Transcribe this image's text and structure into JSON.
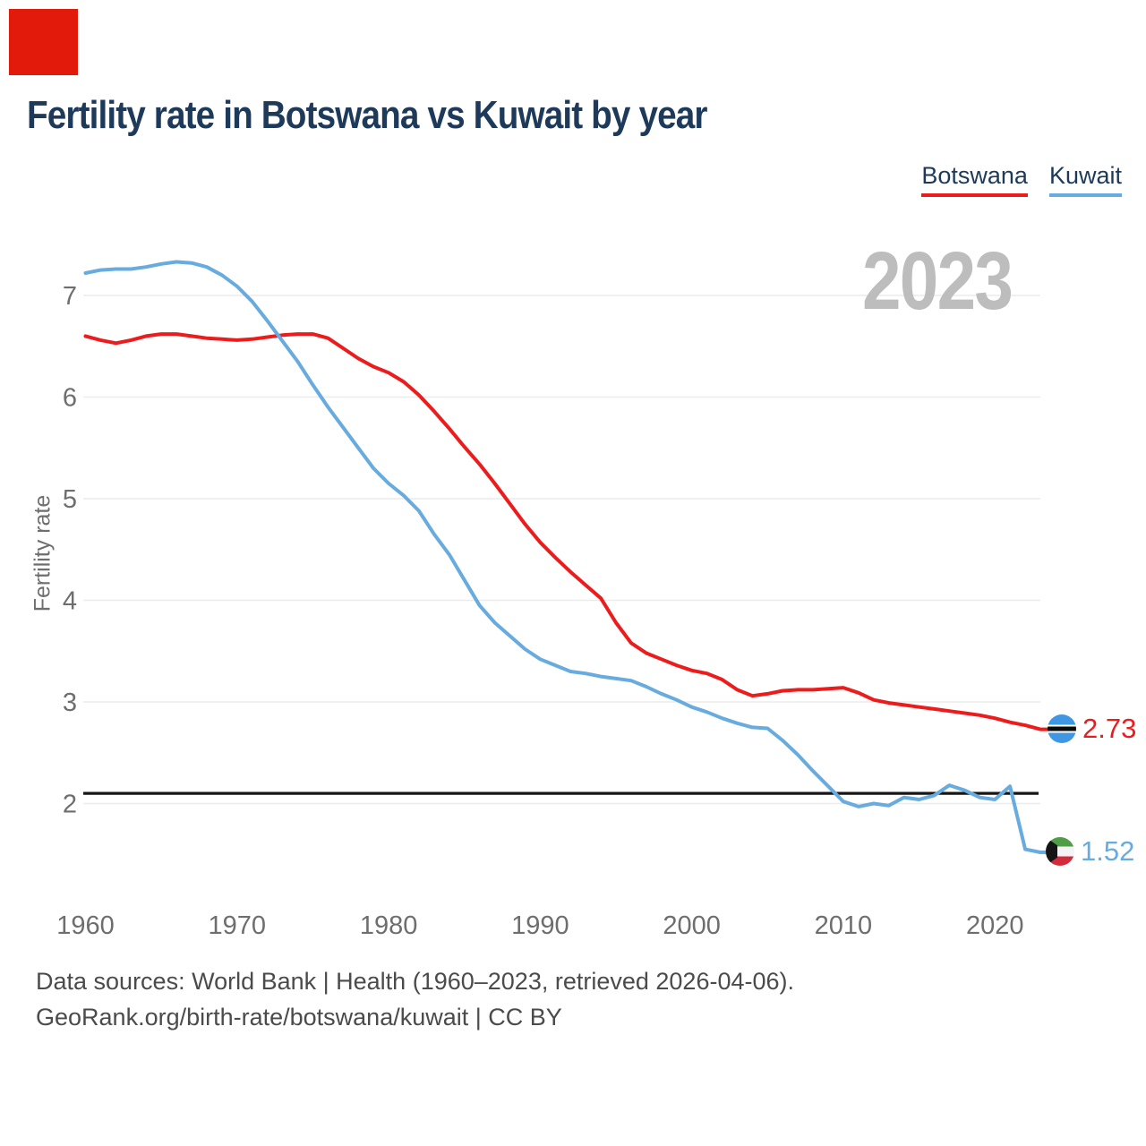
{
  "marker": {
    "color": "#e11a0c"
  },
  "title": "Fertility rate in Botswana vs Kuwait by year",
  "legend": {
    "items": [
      {
        "label": "Botswana",
        "color": "#ed1c1c"
      },
      {
        "label": "Kuwait",
        "color": "#68abde"
      }
    ]
  },
  "watermark": "2023",
  "end_labels": {
    "botswana": {
      "value": "2.73",
      "flag": "botswana-flag",
      "color": "#ed1c1c"
    },
    "kuwait": {
      "value": "1.52",
      "flag": "kuwait-flag",
      "color": "#68abde"
    }
  },
  "footer": {
    "line1": "Data sources: World Bank | Health (1960–2023, retrieved 2026-04-06).",
    "line2": "GeoRank.org/birth-rate/botswana/kuwait | CC BY"
  },
  "flag_colors": {
    "botswana": [
      "#3f97e3",
      "#ffffff",
      "#0b0b0b"
    ],
    "kuwait": [
      "#4f9e45",
      "#f4f4f4",
      "#d32b3c",
      "#151515"
    ]
  },
  "chart_data": {
    "type": "line",
    "title": "Fertility rate in Botswana vs Kuwait by year",
    "xlabel": "",
    "ylabel": "Fertility rate",
    "xlim": [
      1960,
      2023
    ],
    "ylim": [
      1.4,
      7.5
    ],
    "grid": "horizontal",
    "legend_position": "top-right",
    "watermark": "2023",
    "replacement_level_line": 2.1,
    "x_ticks": [
      "1960",
      "1970",
      "1980",
      "1990",
      "2000",
      "2010",
      "2020"
    ],
    "y_ticks": [
      "7",
      "6",
      "5",
      "4",
      "3",
      "2"
    ],
    "years": [
      1960,
      1961,
      1962,
      1963,
      1964,
      1965,
      1966,
      1967,
      1968,
      1969,
      1970,
      1971,
      1972,
      1973,
      1974,
      1975,
      1976,
      1977,
      1978,
      1979,
      1980,
      1981,
      1982,
      1983,
      1984,
      1985,
      1986,
      1987,
      1988,
      1989,
      1990,
      1991,
      1992,
      1993,
      1994,
      1995,
      1996,
      1997,
      1998,
      1999,
      2000,
      2001,
      2002,
      2003,
      2004,
      2005,
      2006,
      2007,
      2008,
      2009,
      2010,
      2011,
      2012,
      2013,
      2014,
      2015,
      2016,
      2017,
      2018,
      2019,
      2020,
      2021,
      2022,
      2023
    ],
    "series": [
      {
        "name": "Botswana",
        "color": "#ed1c1c",
        "end_label": "2.73",
        "values": [
          6.6,
          6.56,
          6.53,
          6.56,
          6.6,
          6.62,
          6.62,
          6.6,
          6.58,
          6.57,
          6.56,
          6.57,
          6.59,
          6.61,
          6.62,
          6.62,
          6.58,
          6.48,
          6.38,
          6.3,
          6.24,
          6.15,
          6.02,
          5.86,
          5.69,
          5.51,
          5.34,
          5.15,
          4.95,
          4.75,
          4.57,
          4.42,
          4.28,
          4.15,
          4.02,
          3.78,
          3.58,
          3.48,
          3.42,
          3.36,
          3.31,
          3.28,
          3.22,
          3.12,
          3.06,
          3.08,
          3.11,
          3.12,
          3.12,
          3.13,
          3.14,
          3.09,
          3.02,
          2.99,
          2.97,
          2.95,
          2.93,
          2.91,
          2.89,
          2.87,
          2.84,
          2.8,
          2.77,
          2.73
        ]
      },
      {
        "name": "Kuwait",
        "color": "#68abde",
        "end_label": "1.52",
        "values": [
          7.22,
          7.25,
          7.26,
          7.26,
          7.28,
          7.31,
          7.33,
          7.32,
          7.28,
          7.2,
          7.09,
          6.94,
          6.75,
          6.55,
          6.35,
          6.12,
          5.9,
          5.7,
          5.5,
          5.3,
          5.15,
          5.03,
          4.88,
          4.65,
          4.45,
          4.2,
          3.95,
          3.78,
          3.65,
          3.52,
          3.42,
          3.36,
          3.3,
          3.28,
          3.25,
          3.23,
          3.21,
          3.15,
          3.08,
          3.02,
          2.95,
          2.9,
          2.84,
          2.79,
          2.75,
          2.74,
          2.62,
          2.48,
          2.32,
          2.17,
          2.02,
          1.97,
          2.0,
          1.98,
          2.06,
          2.04,
          2.08,
          2.18,
          2.13,
          2.06,
          2.04,
          2.17,
          1.55,
          1.52
        ]
      }
    ]
  }
}
